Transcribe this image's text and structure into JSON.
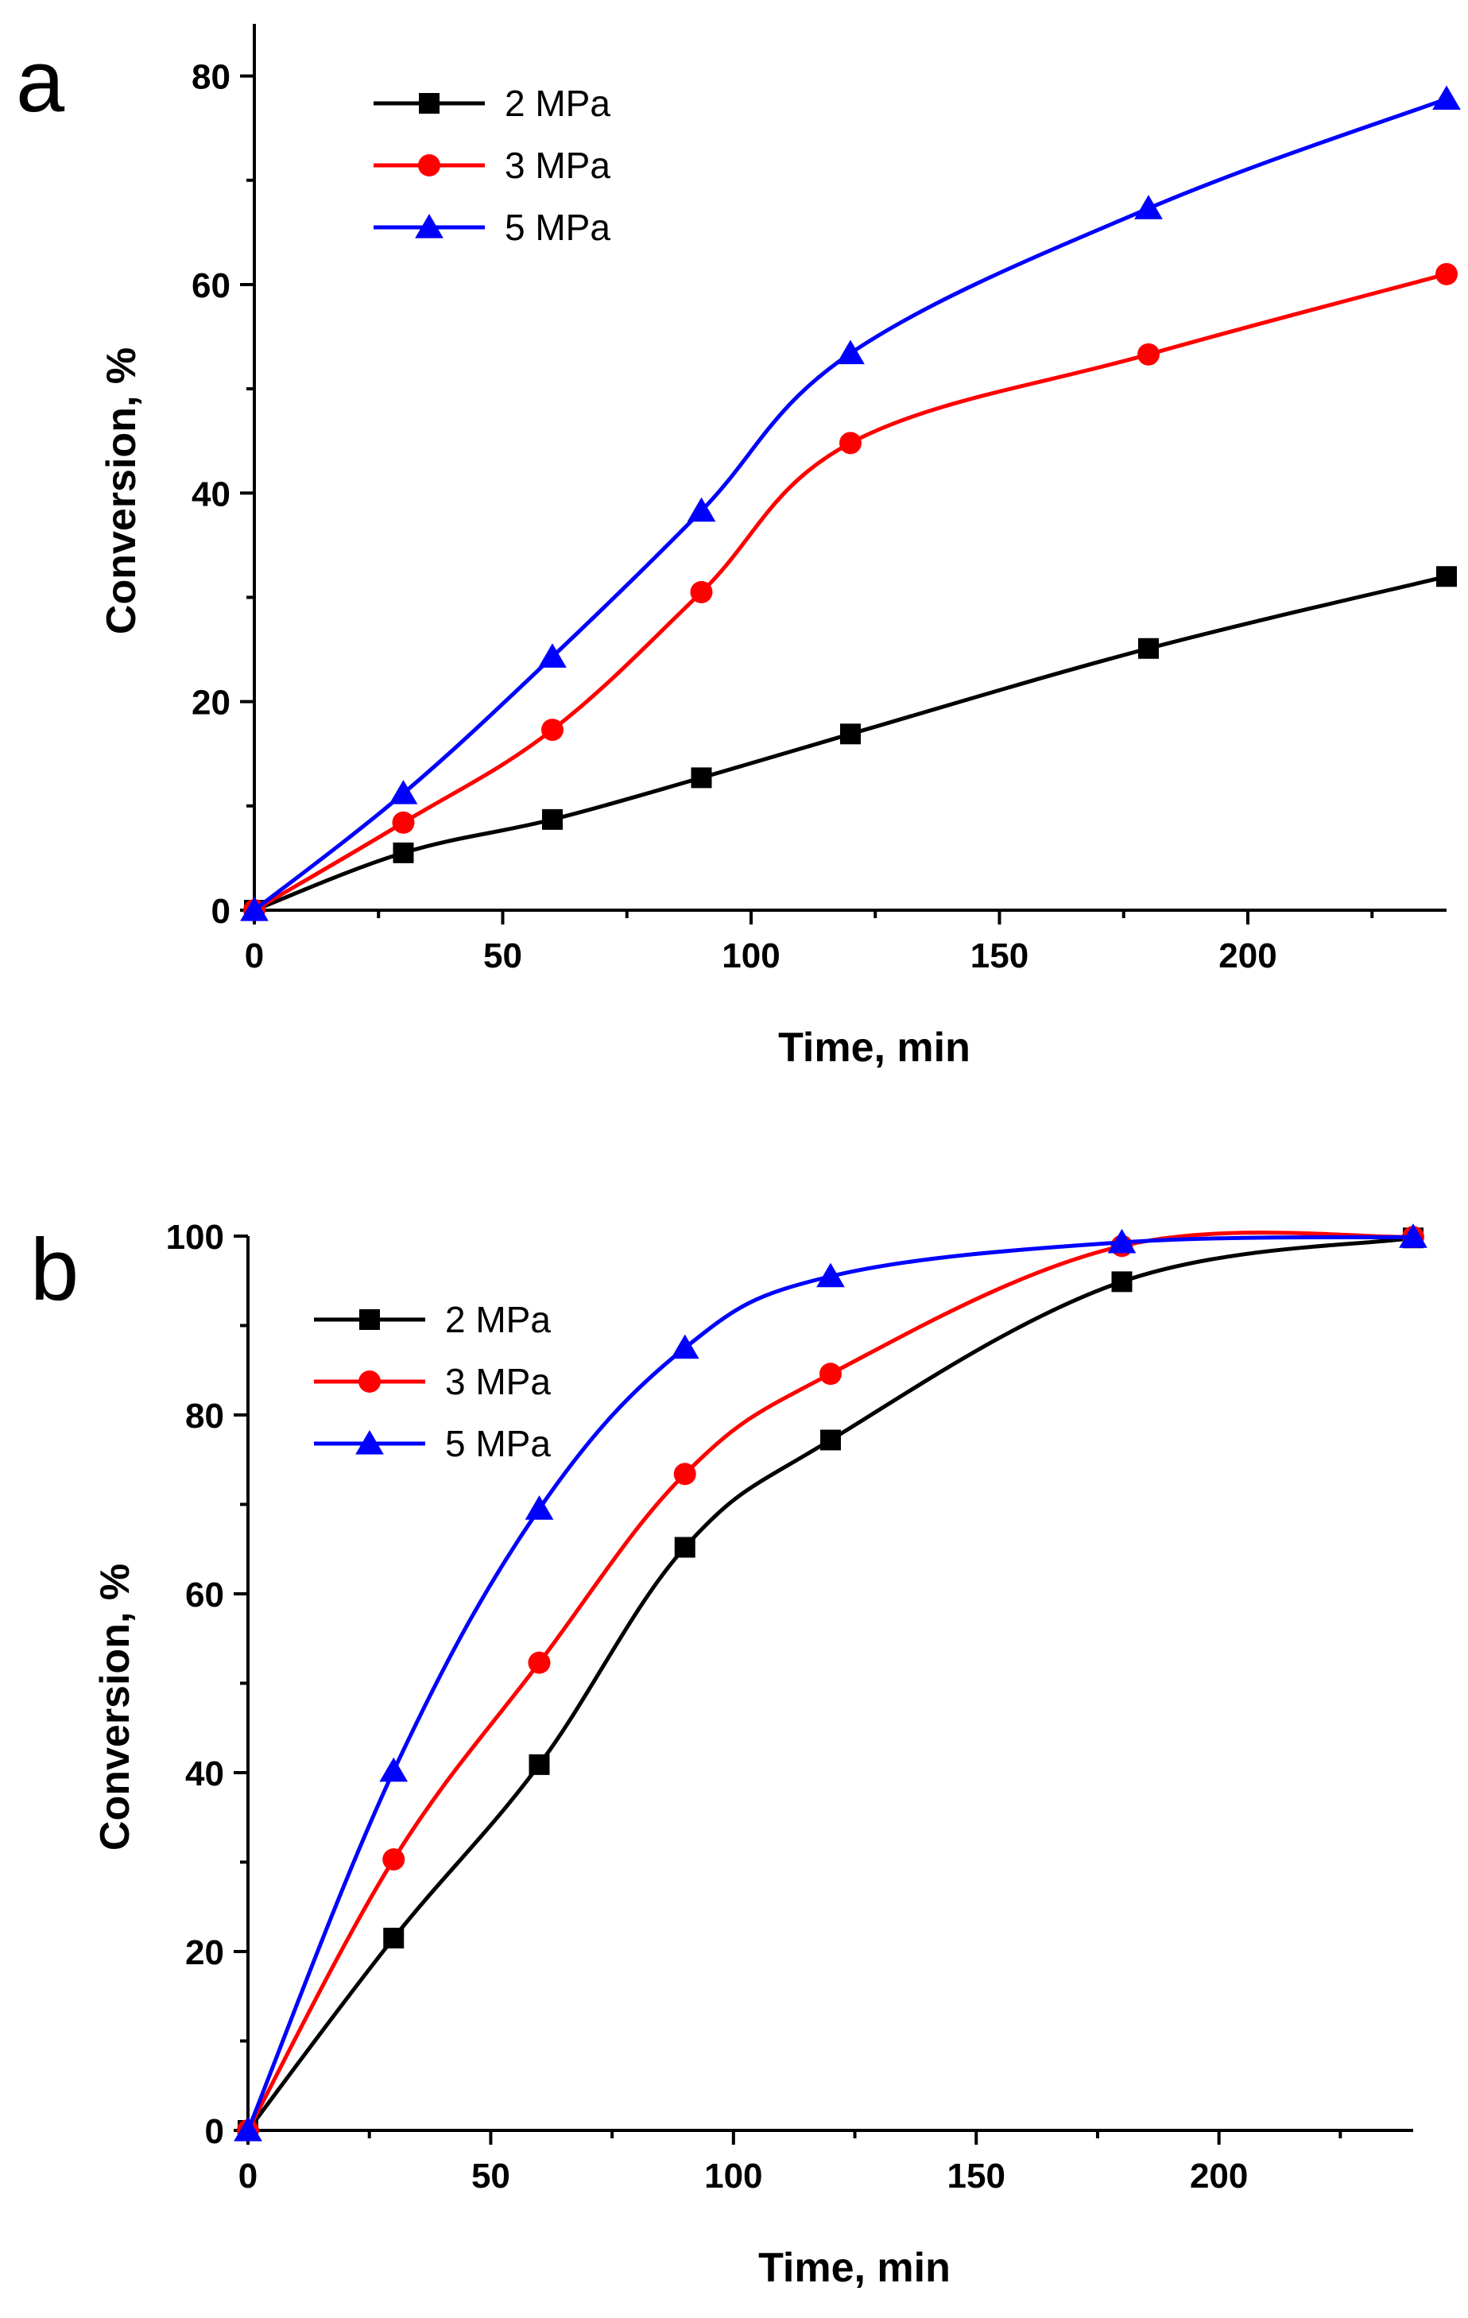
{
  "chart_data": [
    {
      "type": "line",
      "panel_label": "a",
      "xlabel": "Time, min",
      "ylabel": "Conversion, %",
      "xlim": [
        0,
        240
      ],
      "ylim": [
        0,
        85
      ],
      "x_ticks": [
        0,
        50,
        100,
        150,
        200
      ],
      "y_ticks": [
        0,
        20,
        40,
        60,
        80
      ],
      "grid": false,
      "legend_position": "top-left",
      "series": [
        {
          "name": "2 MPa",
          "color": "#000000",
          "marker": "square",
          "x": [
            0,
            30,
            60,
            90,
            120,
            180,
            240
          ],
          "y": [
            0,
            5.5,
            8.7,
            12.7,
            16.9,
            25.1,
            32.0
          ]
        },
        {
          "name": "3 MPa",
          "color": "#ff0000",
          "marker": "circle",
          "x": [
            0,
            30,
            60,
            90,
            120,
            180,
            240
          ],
          "y": [
            0,
            8.4,
            17.3,
            30.5,
            44.8,
            53.3,
            61.0
          ]
        },
        {
          "name": "5 MPa",
          "color": "#0000ff",
          "marker": "triangle",
          "x": [
            0,
            30,
            60,
            90,
            120,
            180,
            240
          ],
          "y": [
            0,
            11.2,
            24.3,
            38.3,
            53.4,
            67.3,
            77.8
          ]
        }
      ]
    },
    {
      "type": "line",
      "panel_label": "b",
      "xlabel": "Time, min",
      "ylabel": "Conversion, %",
      "xlim": [
        0,
        240
      ],
      "ylim": [
        0,
        100
      ],
      "x_ticks": [
        0,
        50,
        100,
        150,
        200
      ],
      "y_ticks": [
        0,
        20,
        40,
        60,
        80,
        100
      ],
      "grid": false,
      "legend_position": "top-left",
      "series": [
        {
          "name": "2 MPa",
          "color": "#000000",
          "marker": "square",
          "x": [
            0,
            30,
            60,
            90,
            120,
            180,
            240
          ],
          "y": [
            0,
            21.5,
            40.9,
            65.2,
            77.2,
            94.9,
            99.8
          ]
        },
        {
          "name": "3 MPa",
          "color": "#ff0000",
          "marker": "circle",
          "x": [
            0,
            30,
            60,
            90,
            120,
            180,
            240
          ],
          "y": [
            0,
            30.3,
            52.3,
            73.4,
            84.6,
            98.9,
            99.9
          ]
        },
        {
          "name": "5 MPa",
          "color": "#0000ff",
          "marker": "triangle",
          "x": [
            0,
            30,
            60,
            90,
            120,
            180,
            240
          ],
          "y": [
            0,
            40.2,
            69.5,
            87.5,
            95.5,
            99.3,
            99.9
          ]
        }
      ]
    }
  ]
}
